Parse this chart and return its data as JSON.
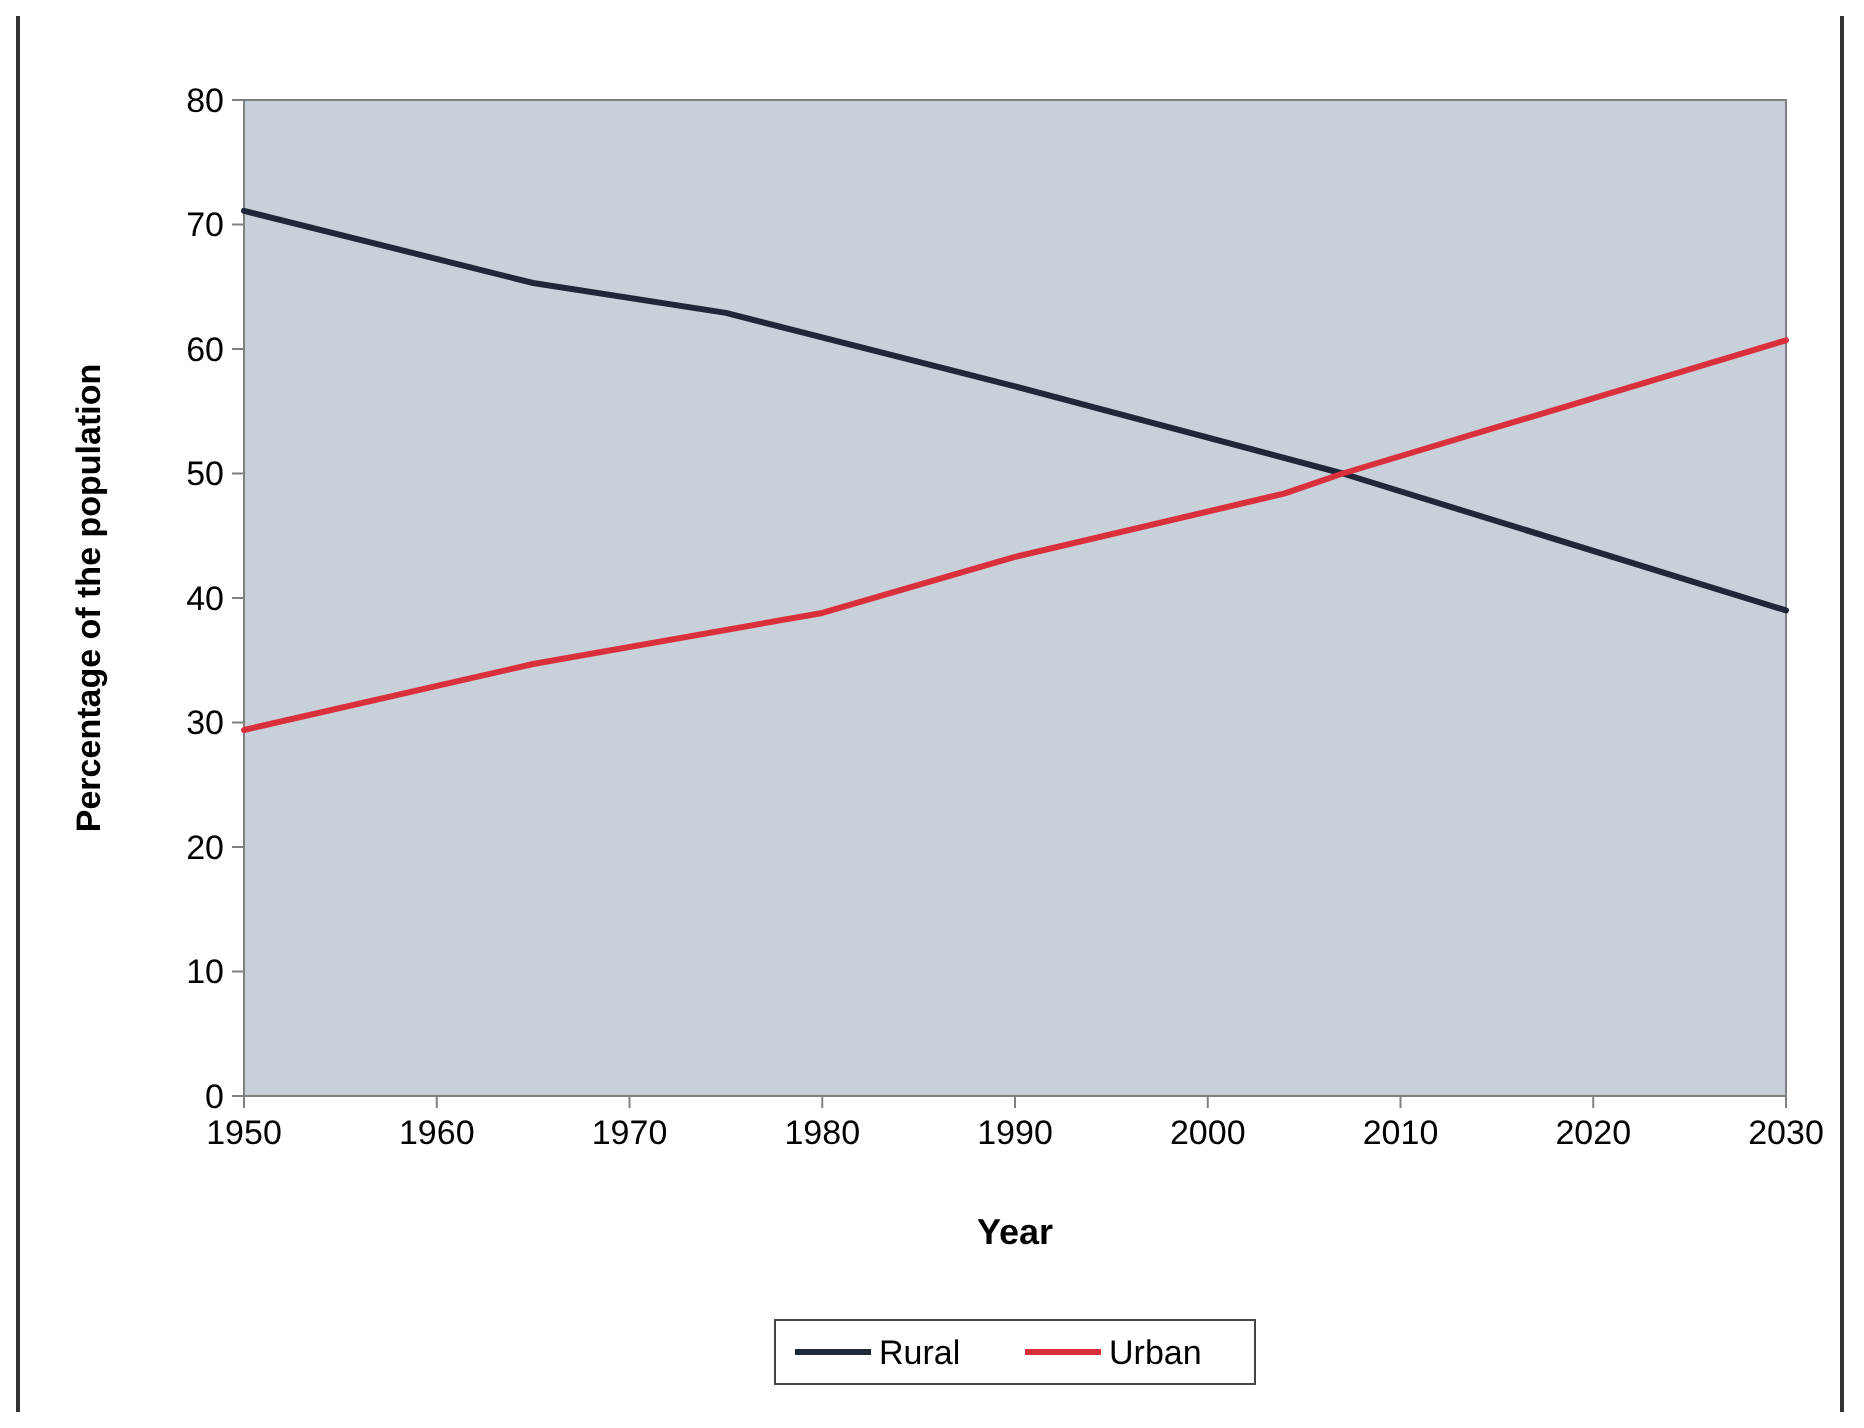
{
  "chart_data": {
    "type": "line",
    "xlabel": "Year",
    "ylabel": "Percentage of the population",
    "xlim": [
      1950,
      2030
    ],
    "xticks": [
      1950,
      1960,
      1970,
      1980,
      1990,
      2000,
      2010,
      2020,
      2030
    ],
    "ylim": [
      0,
      80
    ],
    "yticks": [
      0,
      10,
      20,
      30,
      40,
      50,
      60,
      70,
      80
    ],
    "grid": false,
    "legend": "bottom",
    "marker": "none",
    "line_style": "solid",
    "series": [
      {
        "name": "Rural",
        "color": "#1f2838",
        "x": [
          1950,
          1965,
          1975,
          1990,
          2007,
          2030
        ],
        "values": [
          71.1,
          65.3,
          62.9,
          57.0,
          50,
          39
        ]
      },
      {
        "name": "Urban",
        "color": "#d9303c",
        "x": [
          1950,
          1965,
          1980,
          1990,
          2004,
          2007,
          2030
        ],
        "values": [
          29.4,
          34.7,
          38.8,
          43.3,
          48.4,
          50,
          60.7
        ]
      }
    ]
  }
}
